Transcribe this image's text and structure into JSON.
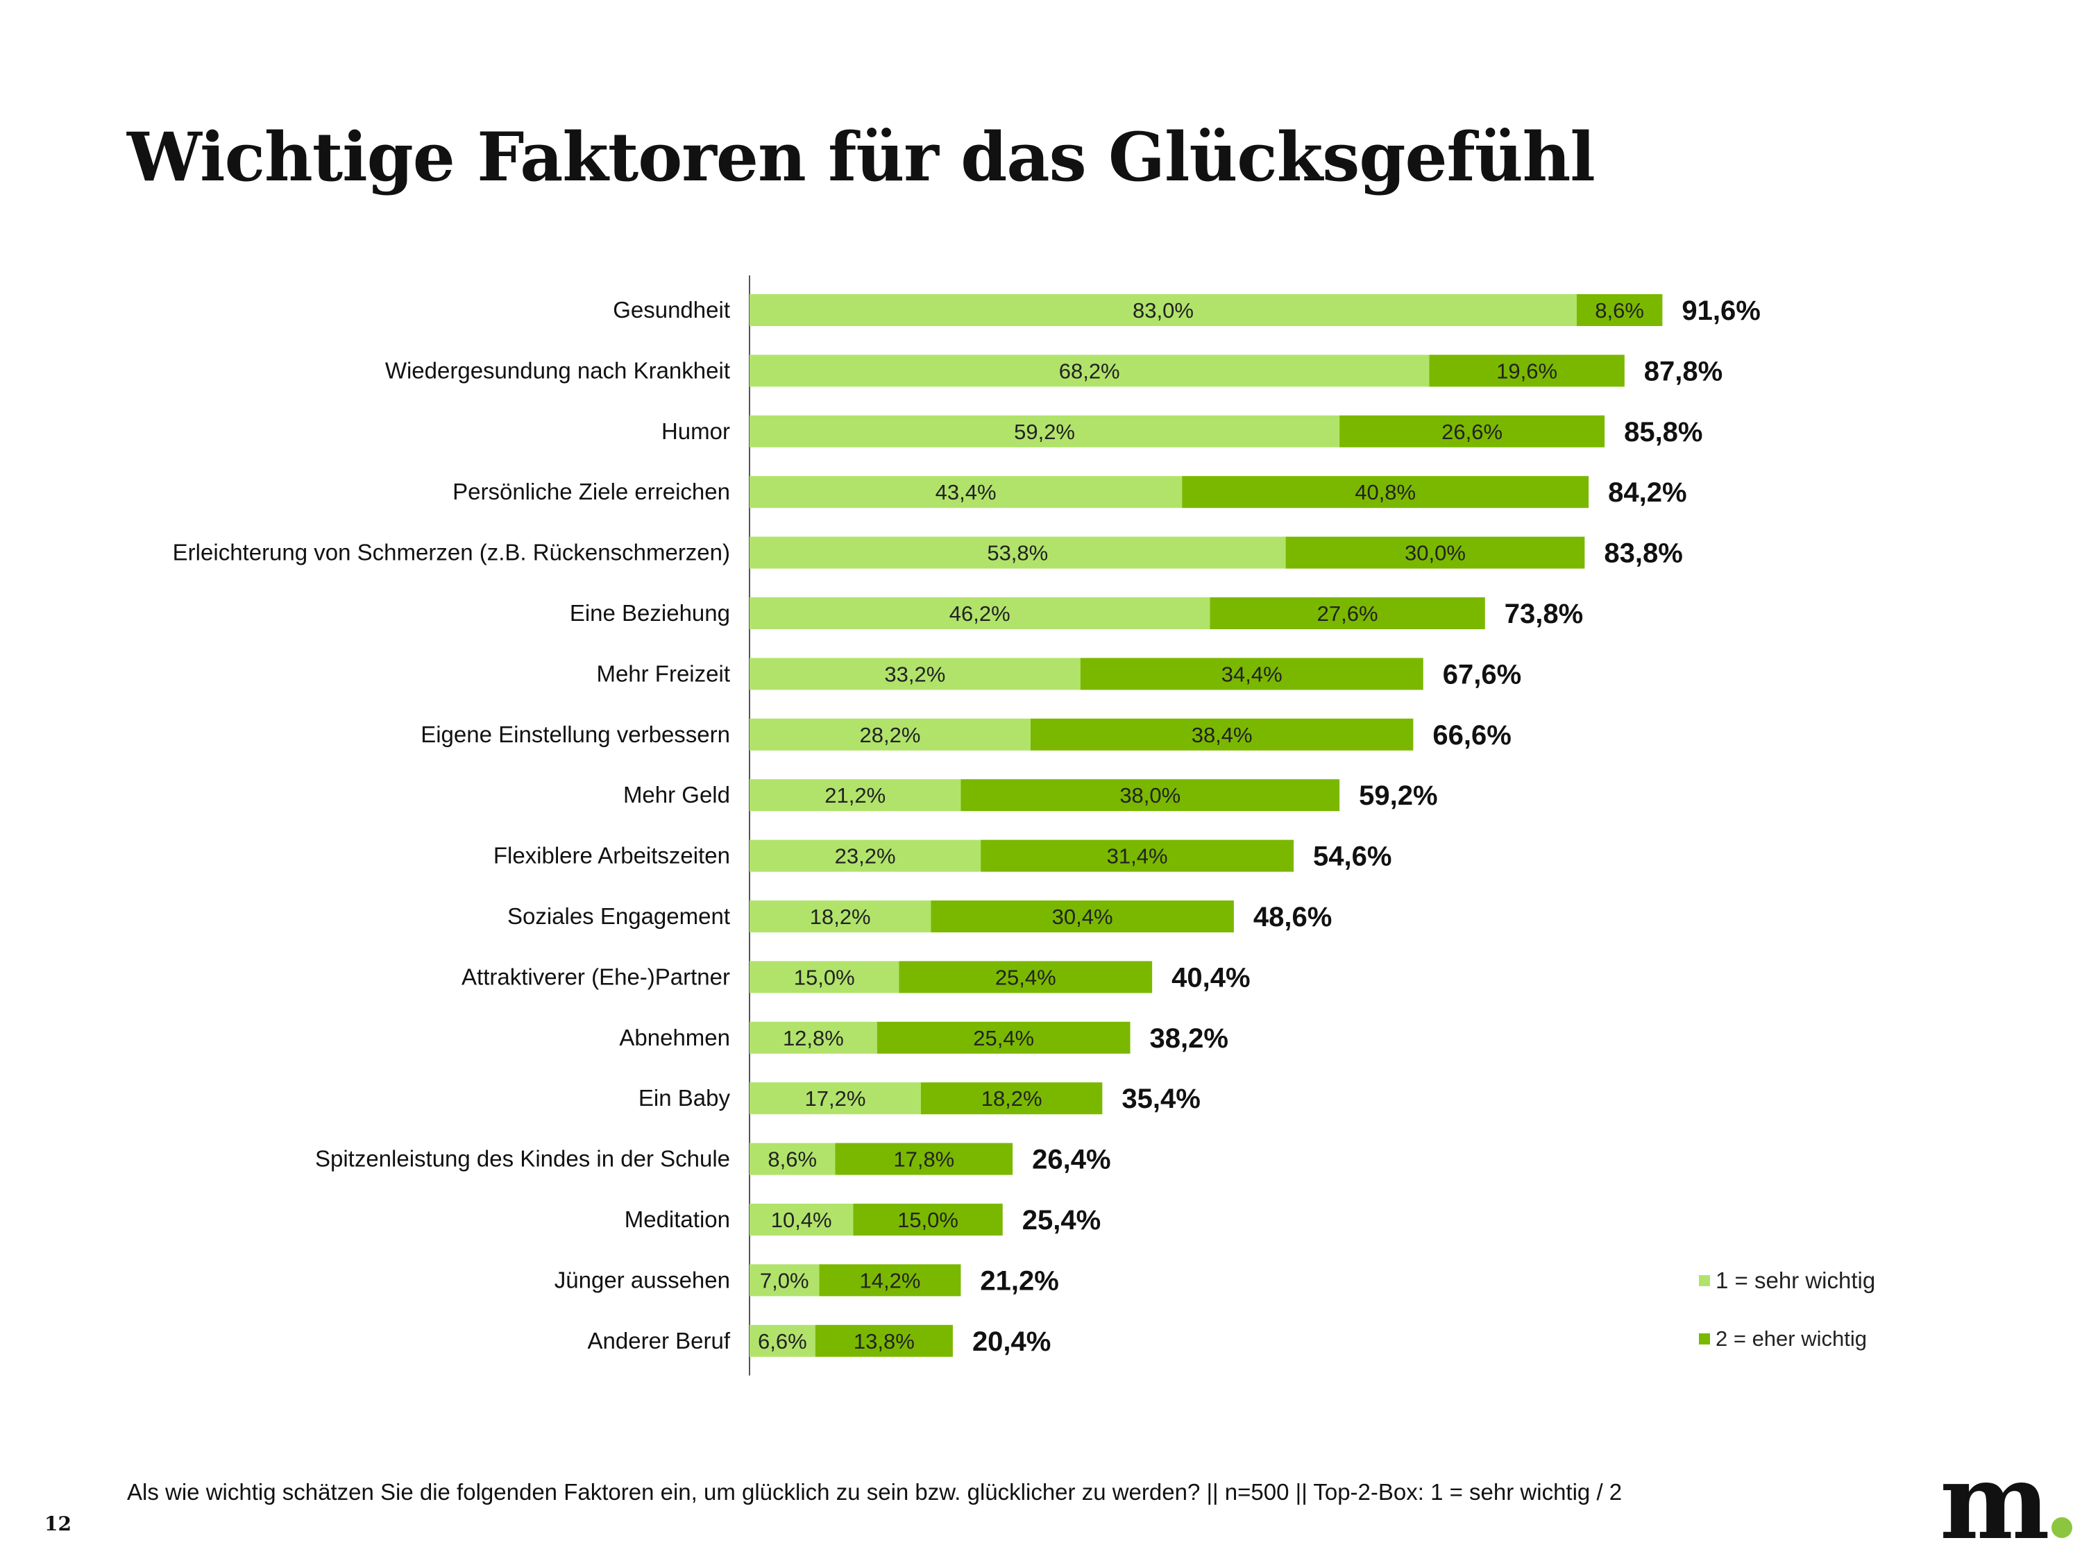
{
  "title": "Wichtige Faktoren für das Glücksgefühl",
  "footer": "Als wie wichtig schätzen Sie die folgenden Faktoren ein, um glücklich zu sein bzw. glücklicher zu werden? || n=500 || Top-2-Box: 1 = sehr wichtig / 2",
  "page_number": "12",
  "logo": "m",
  "colors": {
    "sehr_wichtig": "#b1e36b",
    "eher_wichtig": "#7ab800",
    "logo_dot": "#8cc63f"
  },
  "chart_data": {
    "type": "bar",
    "orientation": "horizontal",
    "stacked": true,
    "title": "Wichtige Faktoren für das Glücksgefühl",
    "xlabel": "",
    "ylabel": "",
    "xlim": [
      0,
      100
    ],
    "grid": false,
    "legend_position": "bottom-right",
    "categories": [
      "Gesundheit",
      "Wiedergesundung nach Krankheit",
      "Humor",
      "Persönliche Ziele erreichen",
      "Erleichterung von Schmerzen (z.B. Rückenschmerzen)",
      "Eine Beziehung",
      "Mehr Freizeit",
      "Eigene Einstellung verbessern",
      "Mehr Geld",
      "Flexiblere Arbeitszeiten",
      "Soziales Engagement",
      "Attraktiverer (Ehe-)Partner",
      "Abnehmen",
      "Ein Baby",
      "Spitzenleistung des Kindes in der Schule",
      "Meditation",
      "Jünger aussehen",
      "Anderer Beruf"
    ],
    "series": [
      {
        "name": "1 = sehr wichtig",
        "values": [
          83.0,
          68.2,
          59.2,
          43.4,
          53.8,
          46.2,
          33.2,
          28.2,
          21.2,
          23.2,
          18.2,
          15.0,
          12.8,
          17.2,
          8.6,
          10.4,
          7.0,
          6.6
        ],
        "labels": [
          "83,0%",
          "68,2%",
          "59,2%",
          "43,4%",
          "53,8%",
          "46,2%",
          "33,2%",
          "28,2%",
          "21,2%",
          "23,2%",
          "18,2%",
          "15,0%",
          "12,8%",
          "17,2%",
          "8,6%",
          "10,4%",
          "7,0%",
          "6,6%"
        ]
      },
      {
        "name": "2  = eher wichtig",
        "values": [
          8.6,
          19.6,
          26.6,
          40.8,
          30.0,
          27.6,
          34.4,
          38.4,
          38.0,
          31.4,
          30.4,
          25.4,
          25.4,
          18.2,
          17.8,
          15.0,
          14.2,
          13.8
        ],
        "labels": [
          "8,6%",
          "19,6%",
          "26,6%",
          "40,8%",
          "30,0%",
          "27,6%",
          "34,4%",
          "38,4%",
          "38,0%",
          "31,4%",
          "30,4%",
          "25,4%",
          "25,4%",
          "18,2%",
          "17,8%",
          "15,0%",
          "14,2%",
          "13,8%"
        ]
      }
    ],
    "totals": [
      91.6,
      87.8,
      85.8,
      84.2,
      83.8,
      73.8,
      67.6,
      66.6,
      59.2,
      54.6,
      48.6,
      40.4,
      38.2,
      35.4,
      26.4,
      25.4,
      21.2,
      20.4
    ],
    "total_labels": [
      "91,6%",
      "87,8%",
      "85,8%",
      "84,2%",
      "83,8%",
      "73,8%",
      "67,6%",
      "66,6%",
      "59,2%",
      "54,6%",
      "48,6%",
      "40,4%",
      "38,2%",
      "35,4%",
      "26,4%",
      "25,4%",
      "21,2%",
      "20,4%"
    ]
  }
}
